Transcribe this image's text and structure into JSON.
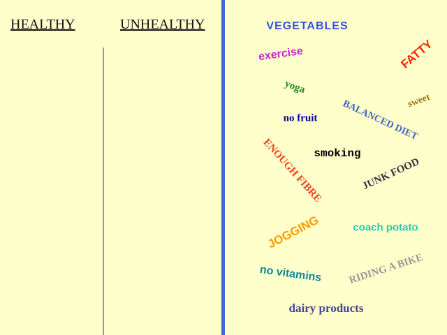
{
  "headers": {
    "healthy": "HEALTHY",
    "unhealthy": "UNHEALTHY"
  },
  "words": [
    "VEGETABLES",
    "FATTY",
    "exercise",
    "yoga",
    "sweet",
    "BALANCED DIET",
    "no fruit",
    "smoking",
    "ENOUGH FIBRE",
    "JUNK FOOD",
    "JOGGING",
    "coach potato",
    "no vitamins",
    "RIDING A BIKE",
    "dairy products"
  ]
}
